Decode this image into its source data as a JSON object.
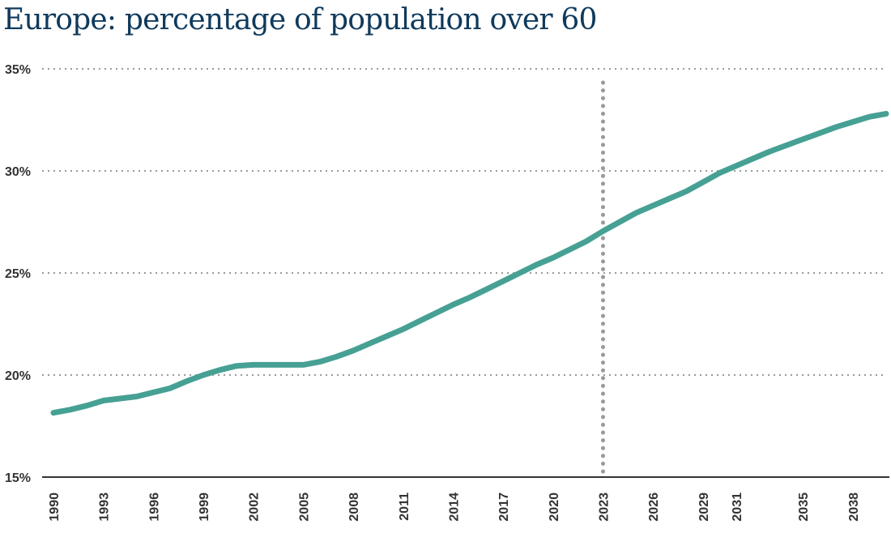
{
  "chart_data": {
    "type": "line",
    "title": "Europe: percentage of population over 60",
    "xlabel": "",
    "ylabel": "",
    "ylim": [
      15,
      35
    ],
    "yticks": [
      15,
      20,
      25,
      30,
      35
    ],
    "ytick_labels": [
      "15%",
      "20%",
      "25%",
      "30%",
      "35%"
    ],
    "xlim": [
      1990,
      2040
    ],
    "xticks": [
      1990,
      1993,
      1996,
      1999,
      2002,
      2005,
      2008,
      2011,
      2014,
      2017,
      2020,
      2023,
      2026,
      2029,
      2031,
      2035,
      2038
    ],
    "xtick_labels": [
      "1990",
      "1993",
      "1996",
      "1999",
      "2002",
      "2005",
      "2008",
      "2011",
      "2014",
      "2017",
      "2020",
      "2023",
      "2026",
      "2029",
      "2031",
      "2035",
      "2038"
    ],
    "grid": true,
    "reference_line_year": 2023,
    "series": [
      {
        "name": "Population over 60 (%)",
        "color": "#46a094",
        "x": [
          1990,
          1991,
          1992,
          1993,
          1994,
          1995,
          1996,
          1997,
          1998,
          1999,
          2000,
          2001,
          2002,
          2003,
          2004,
          2005,
          2006,
          2007,
          2008,
          2009,
          2010,
          2011,
          2012,
          2013,
          2014,
          2015,
          2016,
          2017,
          2018,
          2019,
          2020,
          2021,
          2022,
          2023,
          2024,
          2025,
          2026,
          2027,
          2028,
          2029,
          2030,
          2031,
          2032,
          2033,
          2034,
          2035,
          2036,
          2037,
          2038,
          2039,
          2040
        ],
        "values": [
          18.15,
          18.3,
          18.5,
          18.75,
          18.85,
          18.95,
          19.15,
          19.35,
          19.7,
          20.0,
          20.25,
          20.45,
          20.5,
          20.5,
          20.5,
          20.5,
          20.65,
          20.9,
          21.2,
          21.55,
          21.9,
          22.25,
          22.65,
          23.05,
          23.45,
          23.8,
          24.2,
          24.6,
          25.0,
          25.4,
          25.75,
          26.15,
          26.55,
          27.05,
          27.5,
          27.95,
          28.3,
          28.65,
          29.0,
          29.45,
          29.9,
          30.25,
          30.6,
          30.95,
          31.25,
          31.55,
          31.85,
          32.15,
          32.4,
          32.65,
          32.8
        ]
      }
    ]
  }
}
